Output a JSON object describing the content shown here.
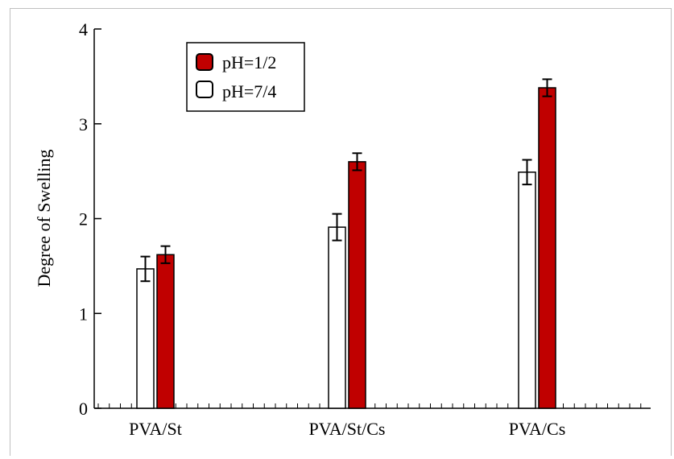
{
  "chart_data": {
    "type": "bar",
    "title": "",
    "xlabel": "",
    "ylabel": "Degree of Swelling",
    "ylim": [
      0,
      4
    ],
    "yticks": [
      "0",
      "1",
      "2",
      "3",
      "4"
    ],
    "categories": [
      "PVA/St",
      "PVA/St/Cs",
      "PVA/Cs"
    ],
    "series": [
      {
        "name": "pH=7/4",
        "values": [
          1.47,
          1.91,
          2.49
        ],
        "errors": [
          0.13,
          0.14,
          0.13
        ],
        "color": "#ffffff"
      },
      {
        "name": "pH=1/2",
        "values": [
          1.62,
          2.6,
          3.38
        ],
        "errors": [
          0.09,
          0.09,
          0.09
        ],
        "color": "#c00000"
      }
    ],
    "legend": {
      "placement": "top-left",
      "items": [
        {
          "label": "pH=1/2",
          "color": "#c00000"
        },
        {
          "label": "pH=7/4",
          "color": "#ffffff"
        }
      ]
    },
    "grid": false
  }
}
